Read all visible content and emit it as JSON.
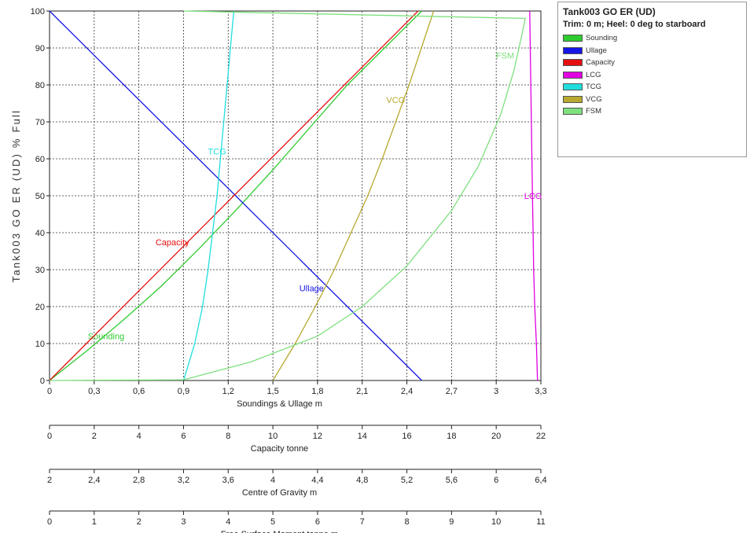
{
  "chart_data": {
    "type": "line",
    "title": "Tank003 GO ER (UD)",
    "subtitle": "Trim: 0 m; Heel: 0 deg to starboard",
    "ylabel": "Tank003 GO ER (UD) % Full",
    "ylim": [
      0,
      100
    ],
    "yticks": [
      "0",
      "10",
      "20",
      "30",
      "40",
      "50",
      "60",
      "70",
      "80",
      "90",
      "100"
    ],
    "grid": true,
    "legend_position": "right",
    "axes": [
      {
        "key": "sound",
        "label": "Soundings & Ullage m",
        "min": 0,
        "max": 3.3,
        "ticks": [
          "0",
          "0,3",
          "0,6",
          "0,9",
          "1,2",
          "1,5",
          "1,8",
          "2,1",
          "2,4",
          "2,7",
          "3",
          "3,3"
        ]
      },
      {
        "key": "cap",
        "label": "Capacity tonne",
        "min": 0,
        "max": 22,
        "ticks": [
          "0",
          "2",
          "4",
          "6",
          "8",
          "10",
          "12",
          "14",
          "16",
          "18",
          "20",
          "22"
        ]
      },
      {
        "key": "cog",
        "label": "Centre of Gravity m",
        "min": 2,
        "max": 6.4,
        "ticks": [
          "2",
          "2,4",
          "2,8",
          "3,2",
          "3,6",
          "4",
          "4,4",
          "4,8",
          "5,2",
          "5,6",
          "6",
          "6,4"
        ]
      },
      {
        "key": "fsm",
        "label": "Free Surface Moment tonne.m",
        "min": 0,
        "max": 11,
        "ticks": [
          "0",
          "1",
          "2",
          "3",
          "4",
          "5",
          "6",
          "7",
          "8",
          "9",
          "10",
          "11"
        ]
      }
    ],
    "series": [
      {
        "name": "Sounding",
        "color": "#2ecc2e",
        "axis": "sound",
        "label": "Sounding",
        "label_at": [
          0.38,
          12
        ],
        "points": [
          [
            0,
            0
          ],
          [
            0.25,
            8
          ],
          [
            0.5,
            16.5
          ],
          [
            0.75,
            25.5
          ],
          [
            1.0,
            35.5
          ],
          [
            1.25,
            46
          ],
          [
            1.5,
            57
          ],
          [
            1.75,
            68.5
          ],
          [
            2.0,
            80
          ],
          [
            2.25,
            90
          ],
          [
            2.5,
            100
          ]
        ]
      },
      {
        "name": "Ullage",
        "color": "#1515e6",
        "axis": "sound",
        "label": "Ullage",
        "label_at": [
          1.76,
          25
        ],
        "points": [
          [
            0,
            100
          ],
          [
            2.5,
            0
          ]
        ]
      },
      {
        "name": "Capacity",
        "color": "#e60f0f",
        "axis": "cap",
        "label": "Capacity",
        "label_at": [
          5.5,
          37.5
        ],
        "points": [
          [
            0,
            0
          ],
          [
            16.5,
            100
          ]
        ]
      },
      {
        "name": "LCG",
        "color": "#e000e0",
        "axis": "cog",
        "label": "LCG",
        "label_at": [
          6.33,
          50
        ],
        "points": [
          [
            6.37,
            0
          ],
          [
            6.36,
            10
          ],
          [
            6.345,
            20
          ],
          [
            6.335,
            30
          ],
          [
            6.33,
            40
          ],
          [
            6.325,
            50
          ],
          [
            6.32,
            60
          ],
          [
            6.315,
            70
          ],
          [
            6.31,
            80
          ],
          [
            6.305,
            90
          ],
          [
            6.3,
            100
          ]
        ]
      },
      {
        "name": "TCG",
        "color": "#20dede",
        "axis": "cog",
        "label": "TCG",
        "label_at": [
          3.5,
          62
        ],
        "points": [
          [
            3.2,
            0
          ],
          [
            3.3,
            10
          ],
          [
            3.37,
            20
          ],
          [
            3.42,
            30
          ],
          [
            3.46,
            40
          ],
          [
            3.5,
            50
          ],
          [
            3.53,
            60
          ],
          [
            3.56,
            70
          ],
          [
            3.59,
            80
          ],
          [
            3.62,
            90
          ],
          [
            3.65,
            100
          ]
        ]
      },
      {
        "name": "VCG",
        "color": "#b8a830",
        "axis": "cog",
        "label": "VCG",
        "label_at": [
          5.1,
          76
        ],
        "points": [
          [
            4.0,
            0
          ],
          [
            4.2,
            10
          ],
          [
            4.38,
            20
          ],
          [
            4.55,
            30
          ],
          [
            4.7,
            40
          ],
          [
            4.85,
            50
          ],
          [
            4.98,
            60
          ],
          [
            5.1,
            70
          ],
          [
            5.22,
            80
          ],
          [
            5.33,
            90
          ],
          [
            5.44,
            100
          ]
        ]
      },
      {
        "name": "FSM",
        "color": "#7fe07f",
        "axis": "fsm",
        "label": "FSM",
        "label_at": [
          10.2,
          88
        ],
        "points": [
          [
            0,
            0
          ],
          [
            3,
            0.2
          ],
          [
            4.5,
            5
          ],
          [
            6,
            12
          ],
          [
            7,
            20
          ],
          [
            8,
            31
          ],
          [
            9,
            46
          ],
          [
            9.6,
            58
          ],
          [
            10.1,
            72
          ],
          [
            10.4,
            84
          ],
          [
            10.6,
            95
          ],
          [
            10.65,
            98
          ],
          [
            3,
            100
          ]
        ]
      }
    ]
  }
}
